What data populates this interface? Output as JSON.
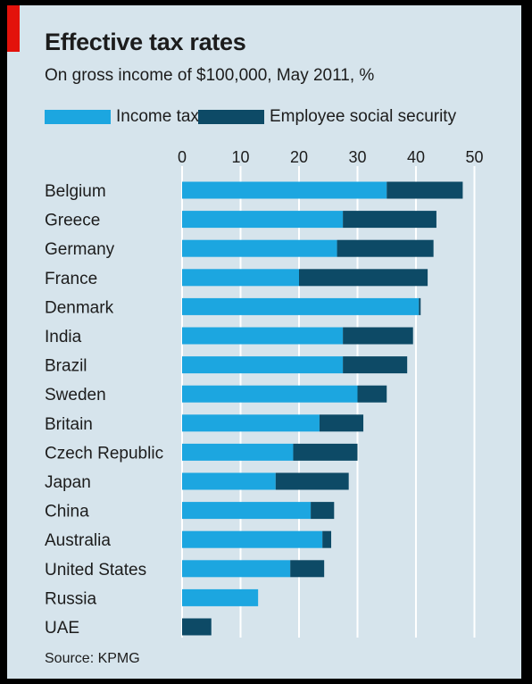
{
  "header": {
    "title": "Effective tax rates",
    "subtitle": "On gross income of $100,000, May 2011, %"
  },
  "footer": {
    "source": "Source: KPMG"
  },
  "colors": {
    "income_tax": "#1ca6e0",
    "social_security": "#0d4a66",
    "background": "#d6e4ec",
    "accent": "#e3120b"
  },
  "chart_data": {
    "type": "bar",
    "orientation": "horizontal",
    "stacked": true,
    "title": "Effective tax rates",
    "subtitle": "On gross income of $100,000, May 2011, %",
    "xlim": [
      0,
      50
    ],
    "xticks": [
      0,
      10,
      20,
      30,
      40,
      50
    ],
    "x_axis_position": "top",
    "grid": true,
    "legend_position": "top-left",
    "categories": [
      "Belgium",
      "Greece",
      "Germany",
      "France",
      "Denmark",
      "India",
      "Brazil",
      "Sweden",
      "Britain",
      "Czech Republic",
      "Japan",
      "China",
      "Australia",
      "United States",
      "Russia",
      "UAE"
    ],
    "series": [
      {
        "name": "Income tax",
        "values": [
          35.0,
          27.5,
          26.5,
          20.0,
          40.5,
          27.5,
          27.5,
          30.0,
          23.5,
          19.0,
          16.0,
          22.0,
          24.0,
          18.5,
          13.0,
          0.0
        ]
      },
      {
        "name": "Employee social security",
        "values": [
          13.0,
          16.0,
          16.5,
          22.0,
          0.3,
          12.0,
          11.0,
          5.0,
          7.5,
          11.0,
          12.5,
          4.0,
          1.5,
          5.8,
          0.0,
          5.0
        ]
      }
    ]
  }
}
